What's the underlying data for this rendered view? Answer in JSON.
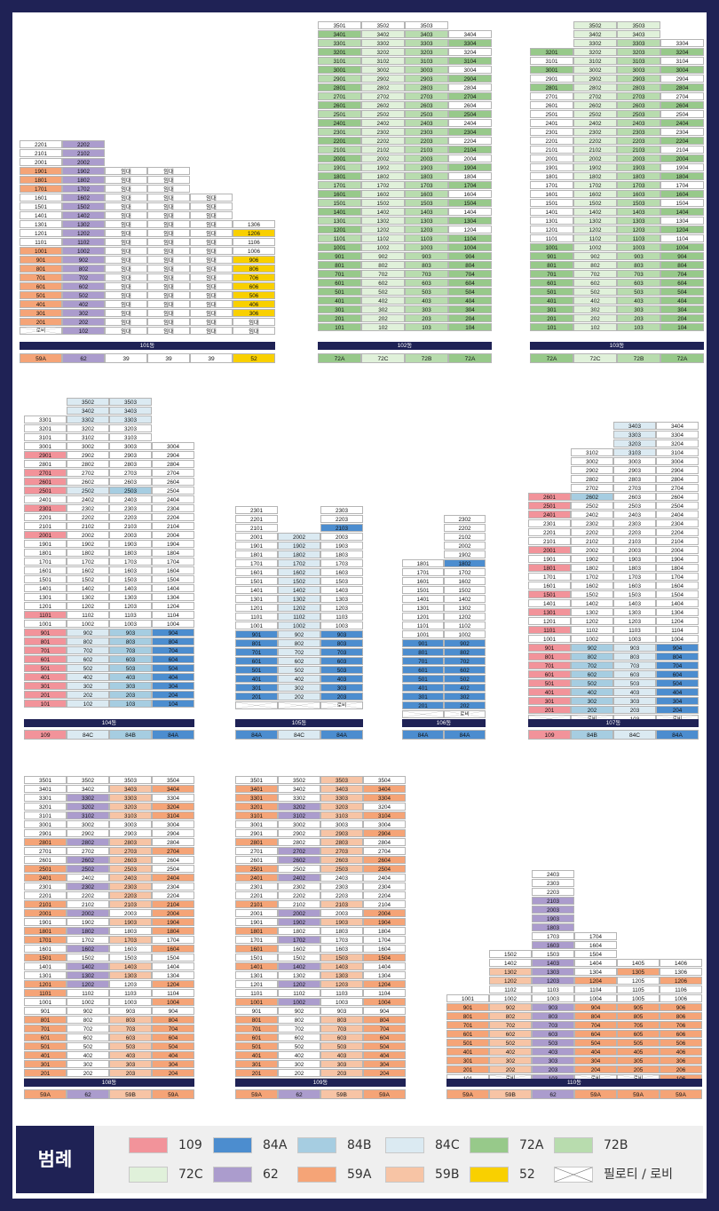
{
  "colors": {
    "109": "#f2939a",
    "84A": "#4c8dcf",
    "84B": "#a6cde1",
    "84C": "#dbeaf2",
    "72A": "#97c98a",
    "72B": "#b8dcae",
    "72C": "#e0f1da",
    "62": "#ab9ccd",
    "59A": "#f5a477",
    "59B": "#f7c4a5",
    "52": "#f9d000",
    "W": "#ffffff"
  },
  "lobby_text": "로비",
  "buildings": [
    {
      "id": "101",
      "name": "101동",
      "cols": 6,
      "types": [
        "59A",
        "62",
        "39",
        "39",
        "39",
        "52"
      ],
      "type_colors": [
        "59A",
        "62",
        "W",
        "W",
        "W",
        "52"
      ],
      "rows": [
        [
          "2201",
          "2202",
          null,
          null,
          null,
          null
        ],
        [
          "2101",
          "2102",
          null,
          null,
          null,
          null
        ],
        [
          "2001",
          "2002",
          null,
          null,
          null,
          null
        ],
        [
          "1901",
          "1902",
          "임대",
          "임대",
          null,
          null
        ],
        [
          "1801",
          "1802",
          "임대",
          "임대",
          null,
          null
        ],
        [
          "1701",
          "1702",
          "임대",
          "임대",
          null,
          null
        ],
        [
          "1601",
          "1602",
          "임대",
          "임대",
          "임대",
          null
        ],
        [
          "1501",
          "1502",
          "임대",
          "임대",
          "임대",
          null
        ],
        [
          "1401",
          "1402",
          "임대",
          "임대",
          "임대",
          null
        ],
        [
          "1301",
          "1302",
          "임대",
          "임대",
          "임대",
          "1306"
        ],
        [
          "1201",
          "1202",
          "임대",
          "임대",
          "임대",
          "1206"
        ],
        [
          "1101",
          "1102",
          "임대",
          "임대",
          "임대",
          "1106"
        ],
        [
          "1001",
          "1002",
          "임대",
          "임대",
          "임대",
          "1006"
        ],
        [
          "901",
          "902",
          "임대",
          "임대",
          "임대",
          "906"
        ],
        [
          "801",
          "802",
          "임대",
          "임대",
          "임대",
          "806"
        ],
        [
          "701",
          "702",
          "임대",
          "임대",
          "임대",
          "706"
        ],
        [
          "601",
          "602",
          "임대",
          "임대",
          "임대",
          "606"
        ],
        [
          "501",
          "502",
          "임대",
          "임대",
          "임대",
          "506"
        ],
        [
          "401",
          "402",
          "임대",
          "임대",
          "임대",
          "406"
        ],
        [
          "301",
          "302",
          "임대",
          "임대",
          "임대",
          "306"
        ],
        [
          "201",
          "202",
          "임대",
          "임대",
          "임대",
          "임대"
        ],
        [
          "LB",
          "102",
          "임대",
          "임대",
          "임대",
          "임대"
        ]
      ],
      "colmap": [
        {
          "59A": [
            1901,
            1801,
            1701,
            1001,
            901,
            801,
            701,
            601,
            501,
            401,
            301,
            201
          ]
        },
        {
          "62": "all"
        },
        {},
        {},
        {},
        {
          "52": [
            1206,
            906,
            806,
            706,
            606,
            506,
            406,
            306
          ]
        }
      ]
    },
    {
      "id": "102",
      "name": "102동",
      "cols": 4,
      "types": [
        "72A",
        "72C",
        "72B",
        "72A"
      ],
      "type_colors": [
        "72A",
        "72C",
        "72B",
        "72A"
      ],
      "rows_from": 35,
      "rows_to": 1,
      "top_cols": {
        "35": [
          1,
          1,
          1,
          0
        ]
      }
    },
    {
      "id": "103",
      "name": "103동",
      "cols": 4,
      "types": [
        "72A",
        "72C",
        "72B",
        "72A"
      ],
      "type_colors": [
        "72A",
        "72C",
        "72B",
        "72A"
      ]
    },
    {
      "id": "104",
      "name": "104동",
      "cols": 4,
      "types": [
        "109",
        "84C",
        "84B",
        "84A"
      ],
      "type_colors": [
        "109",
        "84C",
        "84B",
        "84A"
      ]
    },
    {
      "id": "105",
      "name": "105동",
      "cols": 3,
      "types": [
        "84A",
        "84C",
        "84A"
      ],
      "type_colors": [
        "84A",
        "84C",
        "84A"
      ]
    },
    {
      "id": "106",
      "name": "106동",
      "cols": 2,
      "types": [
        "84A",
        "84A"
      ],
      "type_colors": [
        "84A",
        "84A"
      ]
    },
    {
      "id": "107",
      "name": "107동",
      "cols": 4,
      "types": [
        "109",
        "84B",
        "84C",
        "84A"
      ],
      "type_colors": [
        "109",
        "84B",
        "84C",
        "84A"
      ]
    },
    {
      "id": "108",
      "name": "108동",
      "cols": 4,
      "types": [
        "59A",
        "62",
        "59B",
        "59A"
      ],
      "type_colors": [
        "59A",
        "62",
        "59B",
        "59A"
      ]
    },
    {
      "id": "109",
      "name": "109동",
      "cols": 4,
      "types": [
        "59A",
        "62",
        "59B",
        "59A"
      ],
      "type_colors": [
        "59A",
        "62",
        "59B",
        "59A"
      ]
    },
    {
      "id": "110",
      "name": "110동",
      "cols": 6,
      "types": [
        "59A",
        "59B",
        "62",
        "59A",
        "59A",
        "59A"
      ],
      "type_colors": [
        "59A",
        "59B",
        "62",
        "59A",
        "59A",
        "59A"
      ]
    }
  ],
  "legend": {
    "title": "범례",
    "items": [
      {
        "label": "109",
        "color": "109"
      },
      {
        "label": "84A",
        "color": "84A"
      },
      {
        "label": "84B",
        "color": "84B"
      },
      {
        "label": "84C",
        "color": "84C"
      },
      {
        "label": "72A",
        "color": "72A"
      },
      {
        "label": "72B",
        "color": "72B"
      },
      {
        "label": "72C",
        "color": "72C"
      },
      {
        "label": "62",
        "color": "62"
      },
      {
        "label": "59A",
        "color": "59A"
      },
      {
        "label": "59B",
        "color": "59B"
      },
      {
        "label": "52",
        "color": "52"
      },
      {
        "label": "필로티 / 로비",
        "color": "pilotis"
      }
    ]
  }
}
